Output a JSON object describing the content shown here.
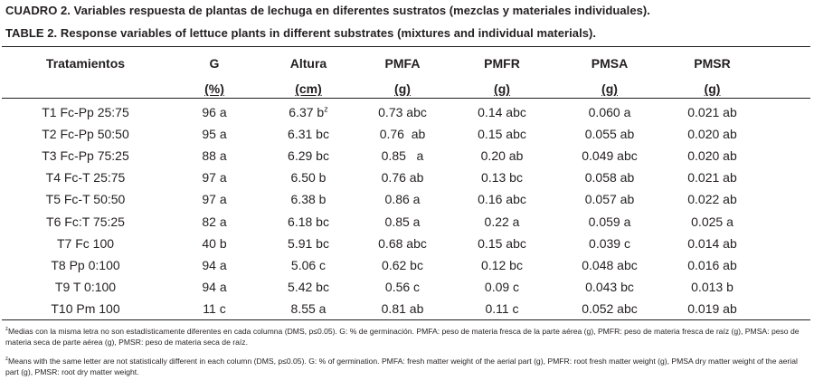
{
  "caption": {
    "es_label": "CUADRO 2.",
    "es_text": "Variables respuesta de plantas de lechuga en diferentes sustratos (mezclas y materiales individuales).",
    "en_label": "TABLE 2.",
    "en_text": "Response variables of lettuce plants in different substrates (mixtures and individual materials)."
  },
  "table": {
    "headers": [
      "Tratamientos",
      "G",
      "Altura",
      "PMFA",
      "PMFR",
      "PMSA",
      "PMSR"
    ],
    "units": [
      "(%)",
      "(cm)",
      "(g)",
      "(g)",
      "(g)",
      "(g)"
    ],
    "superscript_mark": "z",
    "rows": [
      [
        "T1 Fc-Pp 25:75",
        "96 a",
        "6.37 b",
        "0.73 abc",
        "0.14 abc",
        "0.060 a",
        "0.021 ab"
      ],
      [
        "T2 Fc-Pp 50:50",
        "95 a",
        "6.31 bc",
        "0.76  ab",
        "0.15 abc",
        "0.055 ab",
        "0.020 ab"
      ],
      [
        "T3 Fc-Pp 75:25",
        "88 a",
        "6.29 bc",
        "0.85   a",
        "0.20 ab",
        "0.049 abc",
        "0.020 ab"
      ],
      [
        "T4 Fc-T 25:75",
        "97 a",
        "6.50 b",
        "0.76 ab",
        "0.13 bc",
        "0.058 ab",
        "0.021 ab"
      ],
      [
        "T5 Fc-T 50:50",
        "97 a",
        "6.38 b",
        "0.86 a",
        "0.16 abc",
        "0.057 ab",
        "0.022 ab"
      ],
      [
        "T6 Fc:T 75:25",
        "82 a",
        "6.18 bc",
        "0.85 a",
        "0.22 a",
        "0.059 a",
        "0.025 a"
      ],
      [
        "T7 Fc 100",
        "40 b",
        "5.91 bc",
        "0.68 abc",
        "0.15 abc",
        "0.039 c",
        "0.014 ab"
      ],
      [
        "T8 Pp 0:100",
        "94 a",
        "5.06 c",
        "0.62 bc",
        "0.12 bc",
        "0.048 abc",
        "0.016 ab"
      ],
      [
        "T9 T 0:100",
        "94 a",
        "5.42 bc",
        "0.56 c",
        "0.09 c",
        "0.043 bc",
        "0.013 b"
      ],
      [
        "T10 Pm 100",
        "11 c",
        "8.55 a",
        "0.81 ab",
        "0.11 c",
        "0.052 abc",
        "0.019 ab"
      ]
    ]
  },
  "notes": {
    "mark": "z",
    "es": "Medias con la misma letra no son estadísticamente diferentes en cada columna (DMS, p≤0.05). G: % de germinación. PMFA: peso de materia fresca de la parte aérea (g), PMFR: peso de materia fresca de raíz (g), PMSA: peso de materia seca de parte aérea (g), PMSR: peso de materia seca de raíz.",
    "en": "Means with the same letter are not statistically different in each column (DMS, p≤0.05). G: % of germination. PMFA: fresh matter weight of the aerial part (g), PMFR: root fresh matter weight (g), PMSA dry matter weight of the aerial part (g), PMSR: root dry matter weight."
  }
}
